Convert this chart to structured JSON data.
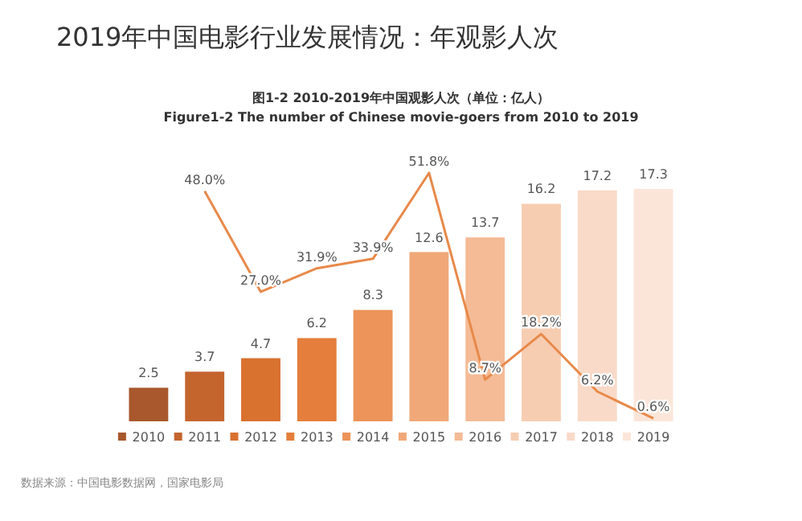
{
  "chart_data": {
    "type": "bar",
    "title": "2019年中国电影行业发展情况：年观影人次",
    "subtitle": "图1-2 2010-2019年中国观影人次（单位：亿人）",
    "annotations": [
      "Figure1-2 The number of Chinese movie-goers from 2010 to 2019",
      "数据来源：中国电影数据网，国家电影局"
    ],
    "categories": [
      "2010",
      "2011",
      "2012",
      "2013",
      "2014",
      "2015",
      "2016",
      "2017",
      "2018",
      "2019"
    ],
    "series": [
      {
        "values": [
          2.5,
          3.7,
          4.7,
          6.2,
          8.3,
          12.6,
          13.7,
          16.2,
          17.2,
          17.3
        ],
        "colors": [
          "#a8582c",
          "#c4652e",
          "#d9712f",
          "#e57e3c",
          "#ec9459",
          "#f0a878",
          "#f4bb96",
          "#f7cdb2",
          "#f9dac8",
          "#fbe5d9"
        ]
      },
      {
        "type": "line",
        "axis": "y2",
        "color": "#e8894a",
        "values": [
          null,
          48.0,
          27.0,
          31.9,
          33.9,
          51.8,
          8.7,
          18.2,
          6.2,
          0.6
        ],
        "value_labels": [
          null,
          "48.0%",
          "27.0%",
          "31.9%",
          "33.9%",
          "51.8%",
          "8.7%",
          "18.2%",
          "6.2%",
          "0.6%"
        ]
      }
    ],
    "data_labels": true,
    "tick_labels": "x",
    "marker": "none"
  }
}
